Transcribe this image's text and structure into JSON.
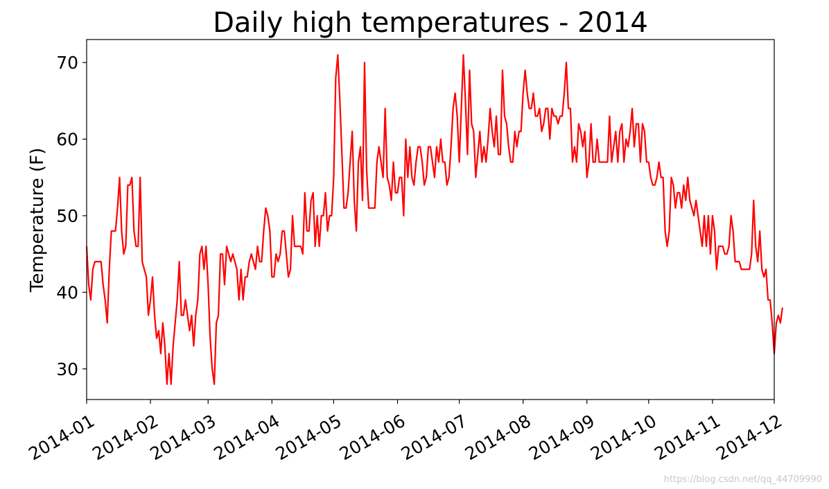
{
  "chart_data": {
    "type": "line",
    "title": "Daily high temperatures - 2014",
    "xlabel": "",
    "ylabel": "Temperature (F)",
    "xlim": [
      "2014-01-01",
      "2014-12-01"
    ],
    "ylim": [
      26,
      73
    ],
    "x_ticks": [
      "2014-01",
      "2014-02",
      "2014-03",
      "2014-04",
      "2014-05",
      "2014-06",
      "2014-07",
      "2014-08",
      "2014-09",
      "2014-10",
      "2014-11",
      "2014-12"
    ],
    "y_ticks": [
      "30",
      "40",
      "50",
      "60",
      "70"
    ],
    "grid": false,
    "series": [
      {
        "color": "#ff0000",
        "x_start": "2014-01-01",
        "x_step": "1 day",
        "values": [
          46,
          41,
          39,
          43,
          44,
          44,
          44,
          44,
          41,
          39,
          36,
          43,
          48,
          48,
          48,
          51,
          55,
          48,
          45,
          46,
          54,
          54,
          55,
          48,
          46,
          46,
          55,
          44,
          43,
          42,
          37,
          39,
          42,
          37,
          34,
          35,
          32,
          36,
          33,
          28,
          32,
          28,
          33,
          36,
          39,
          44,
          37,
          37,
          39,
          37,
          35,
          37,
          33,
          37,
          39,
          45,
          46,
          43,
          46,
          41,
          34,
          30,
          28,
          36,
          37,
          45,
          45,
          41,
          46,
          45,
          44,
          45,
          44,
          43,
          39,
          43,
          39,
          42,
          42,
          44,
          45,
          44,
          43,
          46,
          44,
          44,
          48,
          51,
          50,
          48,
          42,
          42,
          45,
          44,
          45,
          48,
          48,
          45,
          42,
          43,
          50,
          46,
          46,
          46,
          46,
          45,
          53,
          48,
          48,
          52,
          53,
          46,
          50,
          46,
          50,
          50,
          53,
          48,
          50,
          50,
          55,
          68,
          71,
          65,
          58,
          51,
          51,
          53,
          57,
          61,
          52,
          48,
          57,
          59,
          52,
          70,
          56,
          51,
          51,
          51,
          51,
          57,
          59,
          57,
          55,
          64,
          55,
          54,
          52,
          57,
          53,
          53,
          55,
          55,
          50,
          60,
          55,
          59,
          55,
          54,
          57,
          59,
          59,
          57,
          54,
          55,
          59,
          59,
          57,
          55,
          59,
          57,
          60,
          57,
          57,
          54,
          55,
          59,
          64,
          66,
          63,
          57,
          64,
          71,
          65,
          58,
          69,
          62,
          61,
          55,
          58,
          61,
          57,
          59,
          57,
          60,
          64,
          61,
          59,
          63,
          58,
          58,
          69,
          63,
          62,
          59,
          57,
          57,
          61,
          59,
          61,
          61,
          66,
          69,
          66,
          64,
          64,
          66,
          63,
          63,
          64,
          61,
          62,
          64,
          64,
          60,
          64,
          63,
          63,
          62,
          63,
          63,
          66,
          70,
          64,
          64,
          57,
          59,
          57,
          62,
          61,
          59,
          61,
          55,
          57,
          62,
          57,
          57,
          60,
          57,
          57,
          57,
          57,
          57,
          63,
          57,
          59,
          61,
          57,
          61,
          62,
          57,
          60,
          59,
          61,
          64,
          59,
          62,
          62,
          57,
          62,
          61,
          57,
          57,
          55,
          54,
          54,
          55,
          57,
          55,
          55,
          48,
          46,
          48,
          55,
          54,
          51,
          53,
          53,
          51,
          54,
          52,
          55,
          52,
          51,
          50,
          52,
          50,
          48,
          46,
          50,
          46,
          50,
          45,
          50,
          48,
          43,
          46,
          46,
          46,
          45,
          45,
          46,
          50,
          48,
          44,
          44,
          44,
          43,
          43,
          43,
          43,
          43,
          45,
          52,
          46,
          44,
          48,
          43,
          42,
          43,
          39,
          39,
          36,
          32,
          36,
          37,
          36,
          38
        ]
      }
    ]
  },
  "watermark": "https://blog.csdn.net/qq_44709990"
}
